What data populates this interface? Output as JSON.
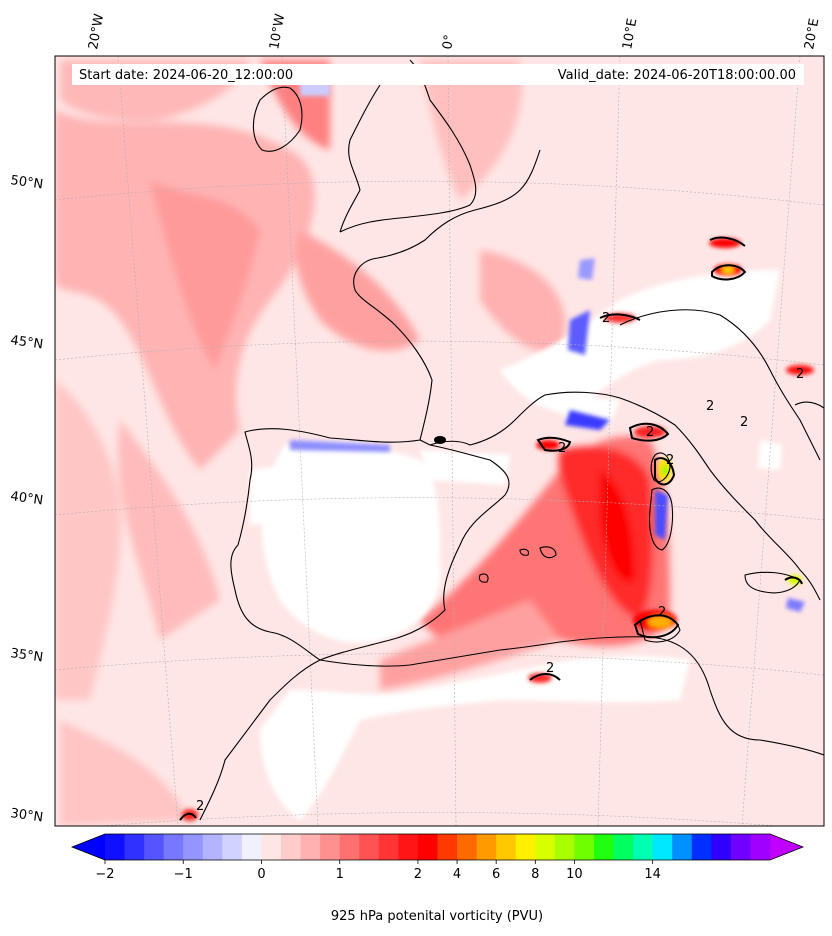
{
  "header": {
    "start_date": "Start date: 2024-06-20_12:00:00",
    "valid_date": "Valid_date: 2024-06-20T18:00:00.00"
  },
  "longitude_labels": [
    "20°W",
    "10°W",
    "0°",
    "10°E",
    "20°E"
  ],
  "latitude_labels": [
    "50°N",
    "45°N",
    "40°N",
    "35°N",
    "30°N"
  ],
  "colorbar": {
    "label": "925 hPa potenital vorticity (PVU)",
    "tick_labels": [
      "−2",
      "−1",
      "0",
      "1",
      "2",
      "4",
      "6",
      "8",
      "10",
      "14"
    ],
    "colors": [
      "#1010ff",
      "#3030ff",
      "#5555ff",
      "#7777ff",
      "#9595ff",
      "#b3b3ff",
      "#d2d2ff",
      "#f0f0ff",
      "#ffe6e6",
      "#ffcccc",
      "#ffb0b0",
      "#ff9090",
      "#ff7070",
      "#ff5252",
      "#ff3434",
      "#ff1515",
      "#ff0000",
      "#ff3a00",
      "#ff6a00",
      "#ff9a00",
      "#ffc800",
      "#fff000",
      "#d8ff00",
      "#a8ff00",
      "#70ff00",
      "#20ff10",
      "#00ff60",
      "#00ffb0",
      "#00e8ff",
      "#0090ff",
      "#0030ff",
      "#3000ff",
      "#7000ff",
      "#a000ff"
    ],
    "extend_min_color": "#0000ff",
    "extend_max_color": "#c000ff"
  },
  "map": {
    "background_color": "#ffe6e6",
    "white_region_color": "#ffffff",
    "coastline_color": "#000000"
  }
}
